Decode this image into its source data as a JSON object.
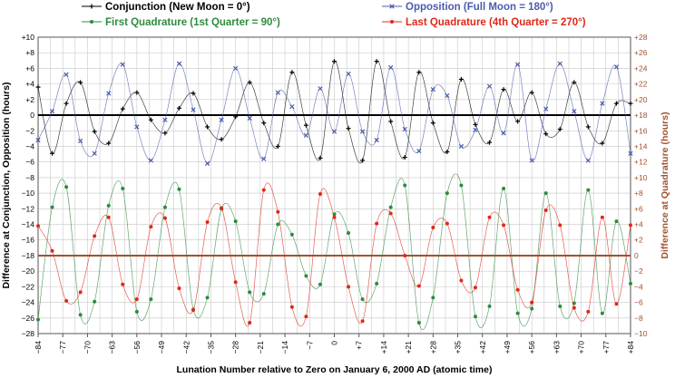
{
  "chart_data": {
    "type": "line",
    "xlabel": "Lunation Number relative to Zero on January 6, 2000 AD (atomic time)",
    "ylabel_left": "Difference at Conjunction, Opposition (hours)",
    "ylabel_right": "Difference at Quadrature (hours)",
    "xlim": [
      -84,
      84
    ],
    "ylim_left": [
      -28,
      10
    ],
    "ylim_right": [
      -10,
      28
    ],
    "grid": true,
    "legend_position": "top",
    "x_tick_labels": [
      "−84",
      "−77",
      "−70",
      "−63",
      "−56",
      "−49",
      "−42",
      "−35",
      "−28",
      "−21",
      "−14",
      "−7",
      "0",
      "+7",
      "+14",
      "+21",
      "+28",
      "+35",
      "+42",
      "+49",
      "+56",
      "+63",
      "+70",
      "+77",
      "+84"
    ],
    "y_left_tick_labels": [
      "+10",
      "+8",
      "+6",
      "+4",
      "+2",
      "0",
      "−2",
      "−4",
      "−6",
      "−8",
      "−10",
      "−12",
      "−14",
      "−16",
      "−18",
      "−20",
      "−22",
      "−24",
      "−26",
      "−28"
    ],
    "y_right_tick_labels": [
      "+28",
      "+26",
      "+24",
      "+22",
      "+20",
      "+18",
      "+16",
      "+14",
      "+12",
      "+10",
      "+8",
      "+6",
      "+4",
      "+2",
      "0",
      "−2",
      "−4",
      "−6",
      "−8",
      "−10"
    ],
    "reference_lines": [
      {
        "axis": "left",
        "y": 0,
        "color": "#000000"
      },
      {
        "axis": "left",
        "y": -18,
        "color": "#a0522d"
      }
    ],
    "series": [
      {
        "name": "Conjunction (New Moon = 0°)",
        "axis": "left",
        "color": "#000000",
        "marker": "+",
        "x": [
          -84,
          -80,
          -76,
          -72,
          -68,
          -64,
          -60,
          -56,
          -52,
          -48,
          -44,
          -40,
          -36,
          -32,
          -28,
          -24,
          -20,
          -16,
          -12,
          -8,
          -4,
          0,
          4,
          8,
          12,
          16,
          20,
          24,
          28,
          32,
          36,
          40,
          44,
          48,
          52,
          56,
          60,
          64,
          68,
          72,
          76,
          80,
          84
        ],
        "values": [
          3.6,
          -4.9,
          1.5,
          4.2,
          -2.1,
          -3.6,
          0.8,
          2.9,
          -0.6,
          -2.3,
          0.9,
          2.8,
          -1.5,
          -3.1,
          -0.2,
          4.2,
          -1.0,
          -4.0,
          5.5,
          -1.3,
          -5.5,
          6.9,
          -1.7,
          -5.8,
          6.9,
          -0.8,
          -5.4,
          5.5,
          -1.0,
          -4.7,
          4.6,
          -1.2,
          -3.5,
          3.3,
          -0.8,
          2.9,
          -2.4,
          -1.8,
          4.2,
          -1.5,
          -3.6,
          1.5,
          1.5
        ]
      },
      {
        "name": "Opposition (Full Moon = 180°)",
        "axis": "left",
        "color": "#4a5cae",
        "marker": "x",
        "x": [
          -84,
          -80,
          -76,
          -72,
          -68,
          -64,
          -60,
          -56,
          -52,
          -48,
          -44,
          -40,
          -36,
          -32,
          -28,
          -24,
          -20,
          -16,
          -12,
          -8,
          -4,
          0,
          4,
          8,
          12,
          16,
          20,
          24,
          28,
          32,
          36,
          40,
          44,
          48,
          52,
          56,
          60,
          64,
          68,
          72,
          76,
          80,
          84
        ],
        "values": [
          -3.2,
          0.5,
          5.2,
          -3.3,
          -4.9,
          2.8,
          6.5,
          -1.5,
          -5.8,
          -0.6,
          6.6,
          0.7,
          -6.2,
          -0.6,
          6.0,
          -0.4,
          -5.6,
          2.9,
          1.1,
          -2.6,
          3.4,
          -2.1,
          5.3,
          -2.1,
          -3.2,
          6.1,
          -1.8,
          -4.6,
          3.3,
          2.5,
          -4.0,
          -1.9,
          3.7,
          -2.3,
          6.5,
          -5.8,
          0.8,
          6.6,
          0.5,
          -5.8,
          1.5,
          6.2,
          -4.9
        ]
      },
      {
        "name": "First Quadrature (1st Quarter = 90°)",
        "axis": "right",
        "color": "#2e8b3e",
        "marker": "dot",
        "x": [
          -84,
          -80,
          -76,
          -72,
          -68,
          -64,
          -60,
          -56,
          -52,
          -48,
          -44,
          -40,
          -36,
          -32,
          -28,
          -24,
          -20,
          -16,
          -12,
          -8,
          -4,
          0,
          4,
          8,
          12,
          16,
          20,
          24,
          28,
          32,
          36,
          40,
          44,
          48,
          52,
          56,
          60,
          64,
          68,
          72,
          76,
          80,
          84
        ],
        "values": [
          -8.2,
          6.2,
          8.8,
          -7.6,
          -5.9,
          6.4,
          8.6,
          -7.2,
          -5.6,
          6.2,
          8.5,
          -6.9,
          -5.4,
          6.0,
          4.4,
          -4.7,
          -4.9,
          4.0,
          2.7,
          -2.6,
          -3.7,
          5.3,
          2.9,
          -5.6,
          -3.6,
          6.2,
          9.0,
          -8.6,
          -5.4,
          8.0,
          9.0,
          -7.8,
          -6.5,
          8.6,
          -7.4,
          -6.8,
          8.0,
          -6.5,
          -6.1,
          8.4,
          -7.4,
          4.4,
          -3.6
        ]
      },
      {
        "name": "Last Quadrature (4th Quarter = 270°)",
        "axis": "right",
        "color": "#e02818",
        "marker": "dot",
        "x": [
          -84,
          -80,
          -76,
          -72,
          -68,
          -64,
          -60,
          -56,
          -52,
          -48,
          -44,
          -40,
          -36,
          -32,
          -28,
          -24,
          -20,
          -16,
          -12,
          -8,
          -4,
          0,
          4,
          8,
          12,
          16,
          20,
          24,
          28,
          32,
          36,
          40,
          44,
          48,
          52,
          56,
          60,
          64,
          68,
          72,
          76,
          80,
          84
        ],
        "values": [
          3.8,
          0.6,
          -5.8,
          -4.7,
          2.5,
          4.9,
          -3.7,
          -5.6,
          3.7,
          4.8,
          -4.2,
          -7.0,
          4.3,
          6.1,
          -3.4,
          -8.6,
          8.4,
          5.6,
          -6.6,
          -7.8,
          7.9,
          4.9,
          -4.0,
          -8.4,
          4.1,
          5.4,
          0.0,
          -3.9,
          3.6,
          4.1,
          -3.2,
          -4.1,
          4.9,
          3.9,
          -4.4,
          -6.0,
          5.8,
          3.9,
          -6.7,
          -7.2,
          4.9,
          -6.2,
          3.9
        ]
      }
    ]
  }
}
